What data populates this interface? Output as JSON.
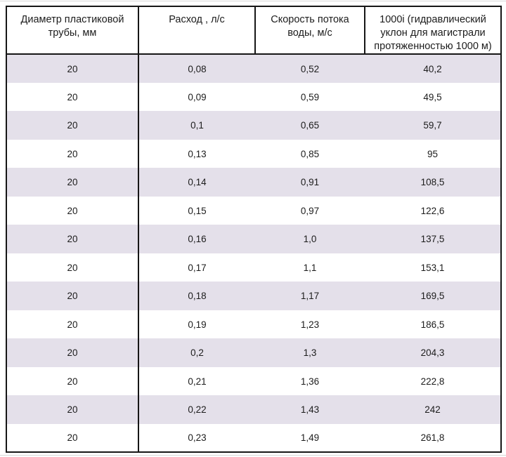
{
  "table": {
    "columns": [
      {
        "label": "Диаметр пластиковой\nтрубы, мм"
      },
      {
        "label": "Расход , л/с"
      },
      {
        "label": "Скорость потока\nводы, м/с"
      },
      {
        "label": "1000i  (гидравлический\nуклон для магистрали\nпротяженностью 1000 м)"
      }
    ],
    "rows": [
      [
        "20",
        "0,08",
        "0,52",
        "40,2"
      ],
      [
        "20",
        "0,09",
        "0,59",
        "49,5"
      ],
      [
        "20",
        "0,1",
        "0,65",
        "59,7"
      ],
      [
        "20",
        "0,13",
        "0,85",
        "95"
      ],
      [
        "20",
        "0,14",
        "0,91",
        "108,5"
      ],
      [
        "20",
        "0,15",
        "0,97",
        "122,6"
      ],
      [
        "20",
        "0,16",
        "1,0",
        "137,5"
      ],
      [
        "20",
        "0,17",
        "1,1",
        "153,1"
      ],
      [
        "20",
        "0,18",
        "1,17",
        "169,5"
      ],
      [
        "20",
        "0,19",
        "1,23",
        "186,5"
      ],
      [
        "20",
        "0,2",
        "1,3",
        "204,3"
      ],
      [
        "20",
        "0,21",
        "1,36",
        "222,8"
      ],
      [
        "20",
        "0,22",
        "1,43",
        "242"
      ],
      [
        "20",
        "0,23",
        "1,49",
        "261,8"
      ]
    ],
    "colors": {
      "stripe": "#e4e0ea",
      "border": "#161616",
      "text": "#1c1c1c",
      "background": "#ffffff",
      "page_edge": "#d8d8d8"
    }
  }
}
